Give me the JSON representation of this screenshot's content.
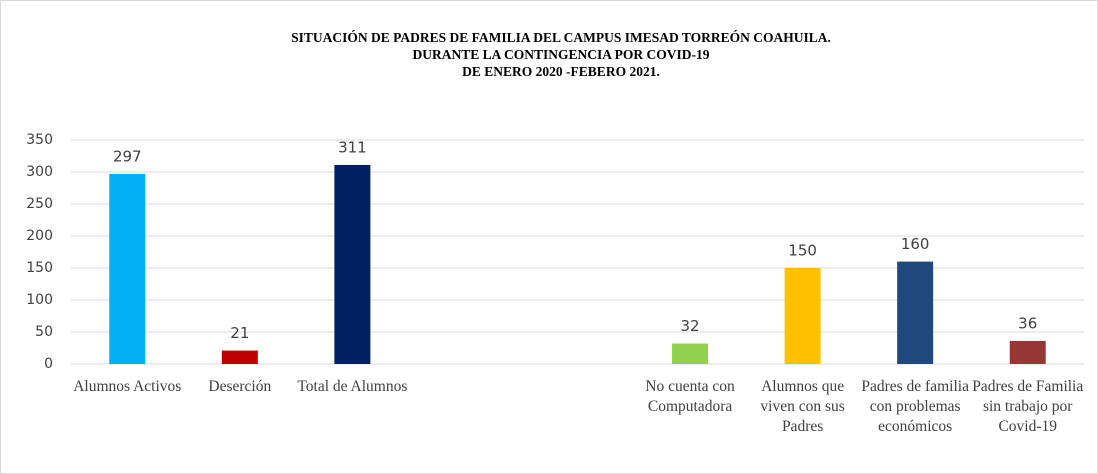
{
  "chart_data": {
    "type": "bar",
    "title": [
      "SITUACIÓN  DE PADRES DE FAMILIA DEL CAMPUS IMESAD  TORREÓN COAHUILA.",
      "DURANTE  LA CONTINGENCIA POR COVID-19",
      "DE ENERO  2020 -FEBERO 2021."
    ],
    "categories": [
      "Alumnos Activos",
      "Deserción",
      "Total de Alumnos",
      null,
      null,
      "No cuenta con Computadora",
      "Alumnos que viven con sus Padres",
      "Padres de familia  con problemas económicos",
      "Padres de Familia sin trabajo por Covid-19"
    ],
    "values": [
      297,
      21,
      311,
      null,
      null,
      32,
      150,
      160,
      36
    ],
    "colors": [
      "#00b0f0",
      "#c00000",
      "#002060",
      null,
      null,
      "#92d050",
      "#ffc000",
      "#1f497d",
      "#953735"
    ],
    "ylim": [
      0,
      350
    ],
    "yticks": [
      0,
      50,
      100,
      150,
      200,
      250,
      300,
      350
    ],
    "grid": true
  }
}
